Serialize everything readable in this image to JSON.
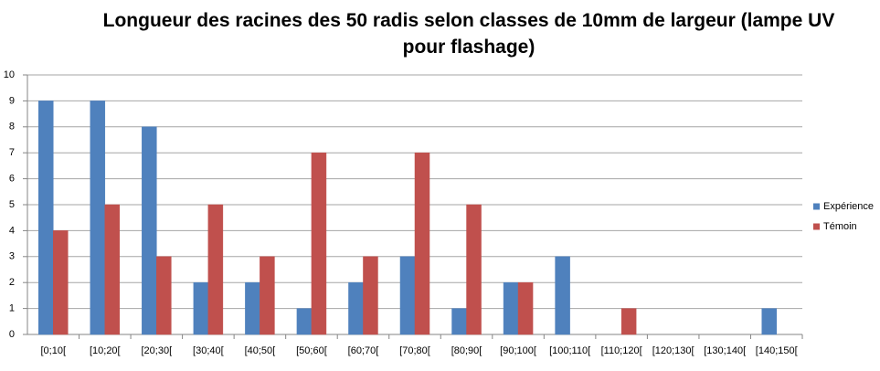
{
  "chart_data": {
    "type": "bar",
    "title": "Longueur des racines des 50 radis selon classes de 10mm de largeur (lampe UV pour flashage)",
    "categories": [
      "[0;10[",
      "[10;20[",
      "[20;30[",
      "[30;40[",
      "[40;50[",
      "[50;60[",
      "[60;70[",
      "[70;80[",
      "[80;90[",
      "[90;100[",
      "[100;110[",
      "[110;120[",
      "[120;130[",
      "[130;140[",
      "[140;150["
    ],
    "series": [
      {
        "name": "Expérience",
        "color": "#4f81bd",
        "values": [
          9,
          9,
          8,
          2,
          2,
          1,
          2,
          3,
          1,
          2,
          3,
          0,
          0,
          0,
          1
        ]
      },
      {
        "name": "Témoin",
        "color": "#c0504d",
        "values": [
          4,
          5,
          3,
          5,
          3,
          7,
          3,
          7,
          5,
          2,
          0,
          1,
          0,
          0,
          0
        ]
      }
    ],
    "ylim": [
      0,
      10
    ],
    "yticks": [
      0,
      1,
      2,
      3,
      4,
      5,
      6,
      7,
      8,
      9,
      10
    ],
    "grid": true,
    "legend": "right"
  }
}
